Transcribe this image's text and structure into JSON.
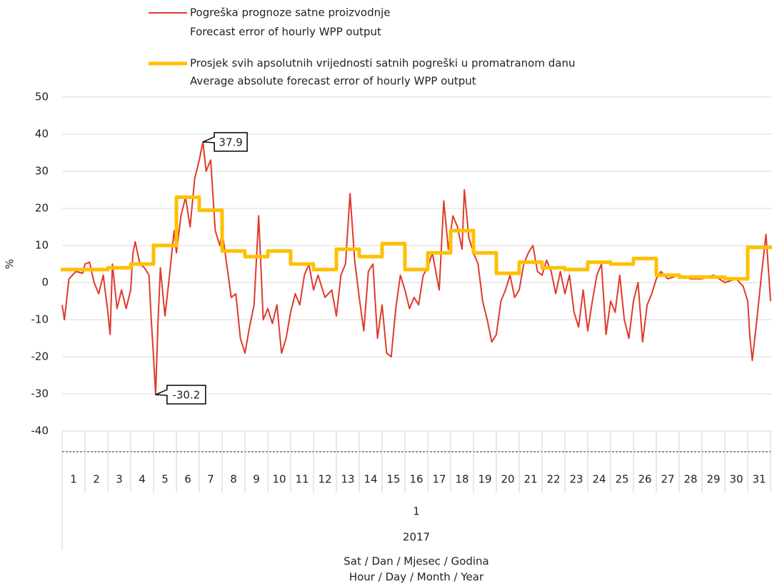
{
  "chart_data": {
    "type": "line",
    "y_label": "%",
    "x_label": [
      "Sat / Dan / Mjesec / Godina",
      "Hour / Day / Month / Year"
    ],
    "categories": [
      "1",
      "2",
      "3",
      "4",
      "5",
      "6",
      "7",
      "8",
      "9",
      "10",
      "11",
      "12",
      "13",
      "14",
      "15",
      "16",
      "17",
      "18",
      "19",
      "20",
      "21",
      "22",
      "23",
      "24",
      "25",
      "26",
      "27",
      "28",
      "29",
      "30",
      "31"
    ],
    "month": "1",
    "year": "2017",
    "ylim": [
      -40,
      50
    ],
    "yticks": [
      -40,
      -30,
      -20,
      -10,
      0,
      10,
      20,
      30,
      40,
      50
    ],
    "grid": true,
    "series": [
      {
        "name": [
          "Pogreška prognoze satne proizvodnje",
          "Forecast error of hourly WPP output"
        ],
        "color": "#e03a2c",
        "x": [
          0.0,
          0.1,
          0.3,
          0.6,
          0.9,
          1.0,
          1.2,
          1.4,
          1.6,
          1.8,
          2.0,
          2.1,
          2.2,
          2.4,
          2.6,
          2.8,
          3.0,
          3.1,
          3.2,
          3.4,
          3.6,
          3.8,
          3.9,
          4.0,
          4.09,
          4.2,
          4.3,
          4.5,
          4.7,
          4.9,
          5.0,
          5.2,
          5.4,
          5.6,
          5.8,
          6.0,
          6.16,
          6.3,
          6.5,
          6.7,
          6.9,
          7.0,
          7.2,
          7.4,
          7.6,
          7.8,
          8.0,
          8.2,
          8.4,
          8.6,
          8.8,
          9.0,
          9.2,
          9.4,
          9.6,
          9.8,
          10.0,
          10.2,
          10.4,
          10.6,
          10.8,
          11.0,
          11.2,
          11.5,
          11.8,
          12.0,
          12.2,
          12.4,
          12.6,
          12.8,
          13.0,
          13.2,
          13.4,
          13.6,
          13.8,
          14.0,
          14.2,
          14.4,
          14.6,
          14.8,
          15.0,
          15.2,
          15.4,
          15.6,
          15.8,
          16.0,
          16.2,
          16.5,
          16.7,
          16.9,
          17.1,
          17.3,
          17.5,
          17.6,
          17.8,
          18.0,
          18.2,
          18.4,
          18.6,
          18.8,
          19.0,
          19.2,
          19.4,
          19.6,
          19.8,
          20.0,
          20.2,
          20.4,
          20.6,
          20.8,
          21.0,
          21.2,
          21.4,
          21.6,
          21.8,
          22.0,
          22.2,
          22.4,
          22.6,
          22.8,
          23.0,
          23.2,
          23.4,
          23.6,
          23.8,
          24.0,
          24.2,
          24.4,
          24.6,
          24.8,
          25.0,
          25.2,
          25.4,
          25.6,
          25.8,
          26.0,
          26.2,
          26.5,
          27.0,
          27.5,
          28.0,
          28.5,
          29.0,
          29.5,
          29.8,
          30.0,
          30.1,
          30.2,
          30.4,
          30.6,
          30.8,
          31.0
        ],
        "values": [
          -6,
          -10,
          1,
          3,
          2.5,
          5,
          5.5,
          0,
          -3,
          2,
          -8,
          -14,
          5,
          -7,
          -2,
          -7,
          -2,
          8,
          11,
          5,
          4,
          2,
          -10,
          -20,
          -30.2,
          -10,
          4,
          -9,
          2,
          14,
          8,
          18,
          23,
          15,
          28,
          33,
          37.9,
          30,
          33,
          14,
          10,
          14,
          5,
          -4,
          -3,
          -15,
          -19,
          -12,
          -6,
          18,
          -10,
          -7,
          -11,
          -6,
          -19,
          -15,
          -8,
          -3,
          -6,
          2,
          5,
          -2,
          2,
          -4,
          -2,
          -9,
          2,
          5,
          24,
          6,
          -4,
          -13,
          3,
          5,
          -15,
          -6,
          -19,
          -20,
          -7,
          2,
          -2,
          -7,
          -4,
          -6,
          2,
          4,
          8,
          -2,
          22,
          9,
          18,
          15,
          9,
          25,
          12,
          8,
          5,
          -5,
          -10,
          -16,
          -14,
          -5,
          -2,
          2,
          -4,
          -2,
          5,
          8,
          10,
          3,
          2,
          6,
          3,
          -3,
          3,
          -3,
          2,
          -8,
          -12,
          -2,
          -13,
          -5,
          2,
          5,
          -14,
          -5,
          -8,
          2,
          -10,
          -15,
          -5,
          0,
          -16,
          -6,
          -3,
          1,
          3,
          1,
          2,
          1,
          1,
          2,
          0,
          1,
          -1,
          -5,
          -15,
          -21,
          -10,
          2,
          13,
          -5
        ]
      },
      {
        "name": [
          "Prosjek svih apsolutnih vrijednosti satnih pogreški u promatranom danu",
          "Average absolute forecast error of hourly WPP output"
        ],
        "color": "#ffc000",
        "step": true,
        "values": [
          3.5,
          3.5,
          4,
          5,
          10,
          23,
          19.5,
          8.5,
          7,
          8.5,
          5,
          3.5,
          9,
          7,
          10.5,
          3.5,
          8,
          14,
          8,
          2.5,
          5.5,
          4,
          3.5,
          5.5,
          5,
          6.5,
          2,
          1.5,
          1.5,
          1,
          9.5
        ]
      }
    ],
    "annotations": [
      {
        "label": "37.9",
        "value": 37.9
      },
      {
        "label": "-30.2",
        "value": -30.2
      }
    ]
  }
}
